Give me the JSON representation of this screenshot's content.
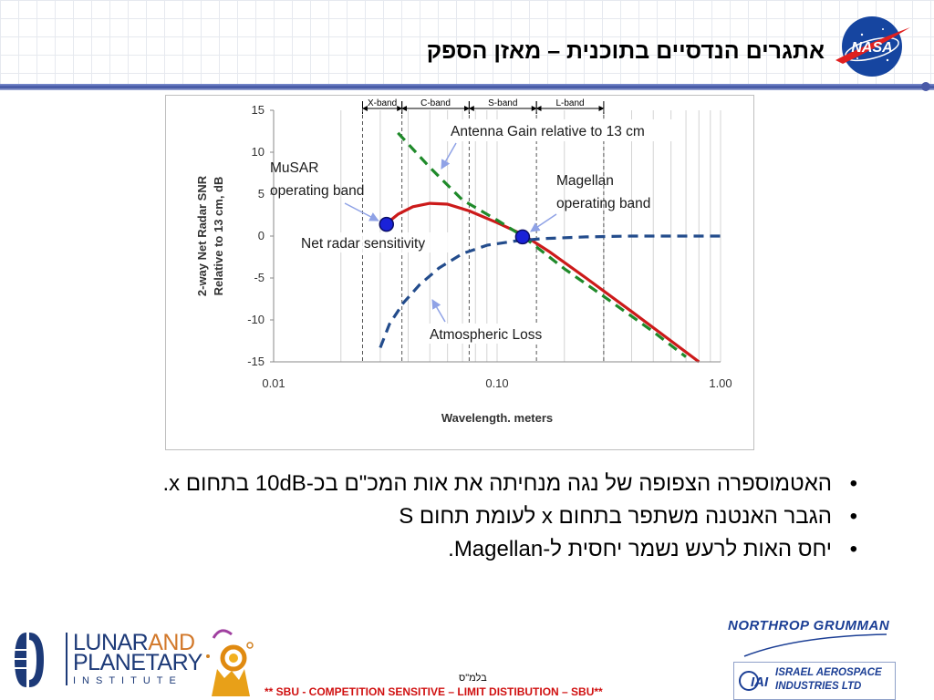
{
  "slide": {
    "title": "אתגרים הנדסיים בתוכנית – מאזן הספק",
    "bullets": [
      "האטמוספרה הצפופה של נגה מנחיתה את אות המכ\"ם בכ-10dB בתחום x.",
      "הגבר האנטנה משתפר בתחום x לעומת תחום S",
      "יחס האות לרעש נשמר יחסית ל-Magellan."
    ],
    "footer": {
      "date": "בלמ\"ס",
      "note": "** SBU - COMPETITION SENSITIVE – LIMIT DISTIBUTION – SBU**",
      "lpi": {
        "line1a": "LUNAR",
        "line1b": "AND",
        "line2": "PLANETARY",
        "line3": "INSTITUTE"
      },
      "northrop": "NORTHROP GRUMMAN",
      "iai": {
        "line1": "ISRAEL AEROSPACE",
        "line2": "INDUSTRIES LTD",
        "mark": "IAI"
      }
    },
    "nasa_logo_text": "NASA"
  },
  "chart_data": {
    "type": "line",
    "xlabel": "Wavelength. meters",
    "ylabel": [
      "2-way Net Radar SNR",
      "Relative to 13 cm, dB"
    ],
    "x_scale": "log",
    "xlim": [
      0.01,
      1.0
    ],
    "ylim": [
      -15,
      15
    ],
    "x_ticks": [
      0.01,
      0.1,
      1.0
    ],
    "x_tick_labels": [
      "0.01",
      "0.10",
      "1.00"
    ],
    "y_ticks": [
      15,
      10,
      5,
      0,
      -5,
      -10,
      -15
    ],
    "y_tick_labels": [
      "15",
      "10",
      "5",
      "0",
      "-5",
      "-10",
      "-15"
    ],
    "grid": "vertical",
    "bands": [
      {
        "label": "X-band",
        "range": [
          0.025,
          0.0375
        ]
      },
      {
        "label": "C-band",
        "range": [
          0.0375,
          0.075
        ]
      },
      {
        "label": "S-band",
        "range": [
          0.075,
          0.15
        ]
      },
      {
        "label": "L-band",
        "range": [
          0.15,
          0.3
        ]
      }
    ],
    "series": [
      {
        "name": "Net radar sensitivity",
        "style": "solid",
        "color": "#cc1a1a",
        "x": [
          0.032,
          0.036,
          0.042,
          0.05,
          0.06,
          0.075,
          0.1,
          0.13,
          0.17,
          0.25,
          0.4,
          0.6,
          0.8
        ],
        "y": [
          1.5,
          2.6,
          3.5,
          3.9,
          3.8,
          3.0,
          1.6,
          0.2,
          -1.8,
          -5.0,
          -9.0,
          -12.5,
          -15.0
        ]
      },
      {
        "name": "Antenna Gain relative to 13 cm",
        "style": "dashed",
        "color": "#1f8a2a",
        "x": [
          0.036,
          0.05,
          0.07,
          0.1,
          0.13,
          0.2,
          0.3,
          0.5,
          0.7
        ],
        "y": [
          12.3,
          8.2,
          4.3,
          1.9,
          0.0,
          -3.9,
          -7.2,
          -11.4,
          -14.4
        ]
      },
      {
        "name": "Atmospheric Loss",
        "style": "dashed",
        "color": "#234c8c",
        "x": [
          0.03,
          0.033,
          0.038,
          0.045,
          0.055,
          0.07,
          0.09,
          0.12,
          0.16,
          0.25,
          0.4,
          0.7,
          1.0
        ],
        "y": [
          -13.3,
          -10.5,
          -8.0,
          -5.8,
          -3.8,
          -2.1,
          -1.1,
          -0.6,
          -0.3,
          -0.1,
          0.0,
          0.0,
          0.0
        ]
      }
    ],
    "points": [
      {
        "label": "MuSAR operating band",
        "x": 0.032,
        "y": 1.4
      },
      {
        "label": "Magellan operating band",
        "x": 0.13,
        "y": -0.1
      }
    ],
    "annotations": [
      {
        "text": "Antenna Gain relative to 13 cm"
      },
      {
        "text": [
          "MuSAR",
          "operating band"
        ]
      },
      {
        "text": [
          "Magellan",
          "operating band"
        ]
      },
      {
        "text": "Net radar sensitivity"
      },
      {
        "text": "Atmospheric Loss"
      }
    ],
    "colors": {
      "marker": "#1a22d8",
      "marker_stroke": "#0a0e66",
      "arrow": "#8fa2e6"
    }
  }
}
